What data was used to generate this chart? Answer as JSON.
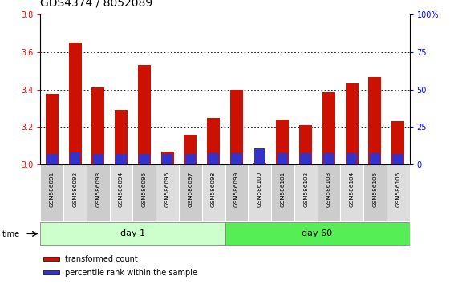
{
  "title": "GDS4374 / 8052089",
  "samples": [
    "GSM586091",
    "GSM586092",
    "GSM586093",
    "GSM586094",
    "GSM586095",
    "GSM586096",
    "GSM586097",
    "GSM586098",
    "GSM586099",
    "GSM586100",
    "GSM586101",
    "GSM586102",
    "GSM586103",
    "GSM586104",
    "GSM586105",
    "GSM586106"
  ],
  "red_values": [
    3.375,
    3.65,
    3.41,
    3.29,
    3.53,
    3.07,
    3.16,
    3.25,
    3.4,
    3.01,
    3.24,
    3.21,
    3.385,
    3.43,
    3.465,
    3.23
  ],
  "blue_heights": [
    0.055,
    0.065,
    0.055,
    0.055,
    0.055,
    0.055,
    0.055,
    0.06,
    0.06,
    0.085,
    0.06,
    0.06,
    0.06,
    0.06,
    0.06,
    0.055
  ],
  "day1_count": 8,
  "day60_count": 8,
  "day1_label": "day 1",
  "day60_label": "day 60",
  "time_label": "time",
  "ylim_left": [
    3.0,
    3.8
  ],
  "ylim_right": [
    0,
    100
  ],
  "yticks_left": [
    3.0,
    3.2,
    3.4,
    3.6,
    3.8
  ],
  "yticks_right": [
    0,
    25,
    50,
    75,
    100
  ],
  "ytick_right_labels": [
    "0",
    "25",
    "50",
    "75",
    "100%"
  ],
  "bar_width": 0.55,
  "red_color": "#CC1100",
  "blue_color": "#3333CC",
  "day1_bg": "#CCFFCC",
  "day60_bg": "#55EE55",
  "cell_bg_odd": "#CCCCCC",
  "cell_bg_even": "#DDDDDD",
  "legend_red": "transformed count",
  "legend_blue": "percentile rank within the sample",
  "title_fontsize": 10,
  "tick_fontsize": 7,
  "label_fontsize": 8
}
